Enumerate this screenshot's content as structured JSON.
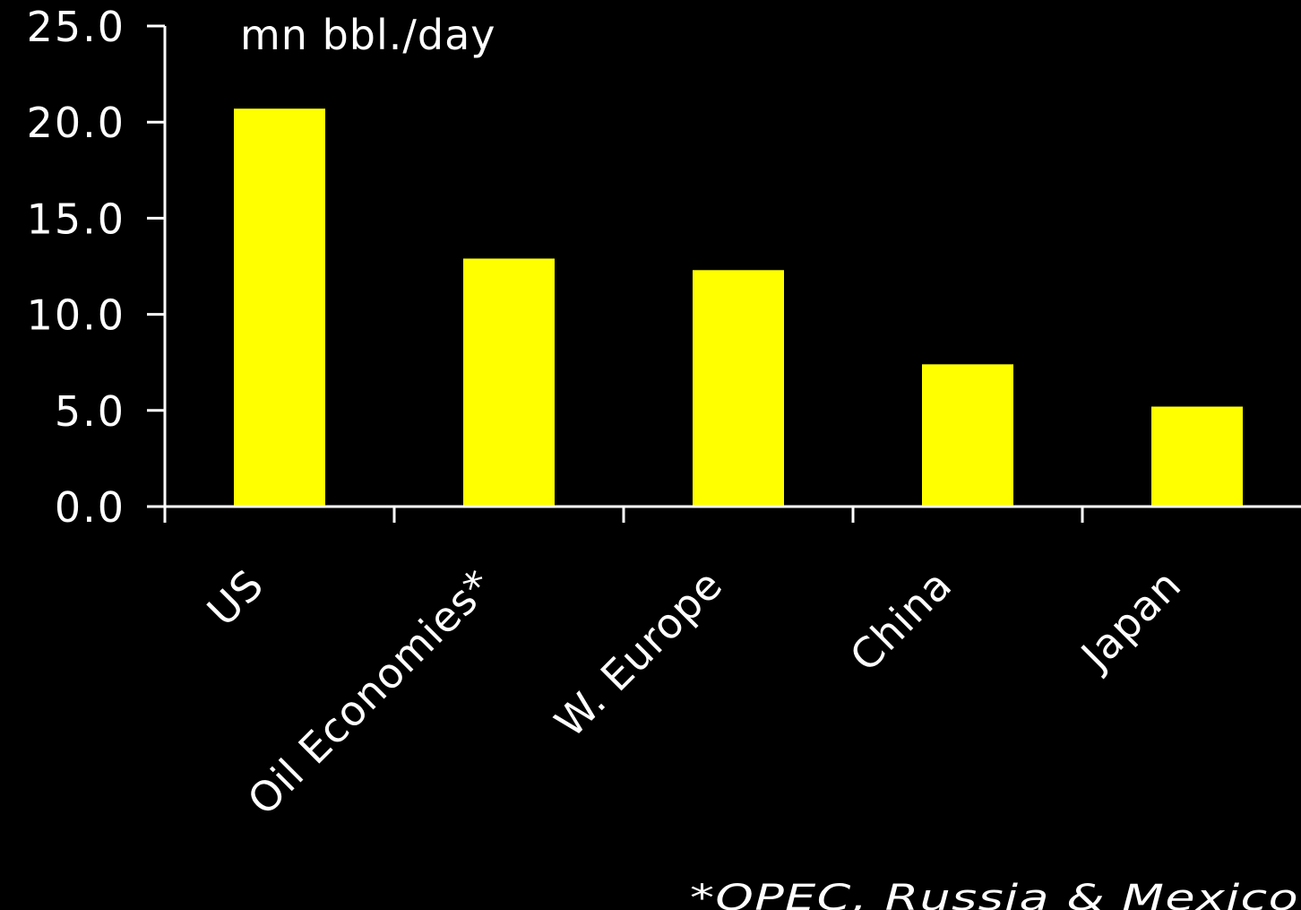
{
  "chart_data": {
    "type": "bar",
    "title": "",
    "xlabel": "",
    "ylabel": "mn bbl./day",
    "categories": [
      "US",
      "Oil Economies*",
      "W. Europe",
      "China",
      "Japan"
    ],
    "values": [
      20.7,
      12.9,
      12.3,
      7.4,
      5.2
    ],
    "ylim": [
      0,
      25
    ],
    "yticks": [
      "0.0",
      "5.0",
      "10.0",
      "15.0",
      "20.0",
      "25.0"
    ],
    "ytick_values": [
      0,
      5,
      10,
      15,
      20,
      25
    ],
    "grid": false,
    "bar_color": "#ffff00",
    "axis_color": "#ffffff",
    "background": "#000000",
    "footnote": "*OPEC, Russia & Mexico"
  }
}
